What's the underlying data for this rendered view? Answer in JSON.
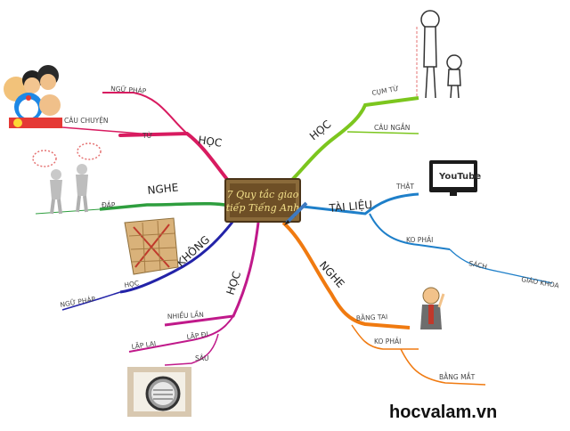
{
  "center": {
    "line1": "7 Quy tắc giao",
    "line2": "tiếp Tiếng Anh"
  },
  "footer": {
    "site": "hocvalam.vn"
  },
  "branches": {
    "hoc_left": {
      "label": "HỌC",
      "sub": [
        "NGỮ PHÁP",
        "CÂU CHUYỆN",
        "TỪ"
      ],
      "color": "#d81b60"
    },
    "nghe_left": {
      "label": "NGHE",
      "sub": [
        "ĐÁP"
      ],
      "color": "#2e9e3e"
    },
    "khong": {
      "label": "KHÔNG",
      "sub": [
        "HỌC",
        "NGỮ PHÁP"
      ],
      "color": "#2323a8"
    },
    "hoc_bottom": {
      "label": "HỌC",
      "sub": [
        "NHIỀU LẦN",
        "LẶP ĐI",
        "LẶP LẠI",
        "SÂU"
      ],
      "color": "#c0198a"
    },
    "hoc_right": {
      "label": "HỌC",
      "sub": [
        "CỤM TỪ",
        "CÂU NGẮN"
      ],
      "color": "#7cc61e"
    },
    "tai_lieu": {
      "label": "TÀI LIỆU",
      "sub": [
        "THẬT",
        "KO PHẢI",
        "SÁCH",
        "GIÁO KHOA"
      ],
      "color": "#1e7fc9"
    },
    "nghe_right": {
      "label": "NGHE",
      "sub": [
        "BẰNG TAI",
        "KO PHẢI",
        "BẰNG MẮT"
      ],
      "color": "#f07a10"
    }
  },
  "images": {
    "youtube_text": "YouTube"
  },
  "icons": [
    "cartoon-group-icon",
    "thinking-people-icon",
    "grid-book-icon",
    "magnifier-paper-icon",
    "stick-figures-icon",
    "youtube-tv-icon",
    "listening-man-icon",
    "pencil-icon"
  ]
}
